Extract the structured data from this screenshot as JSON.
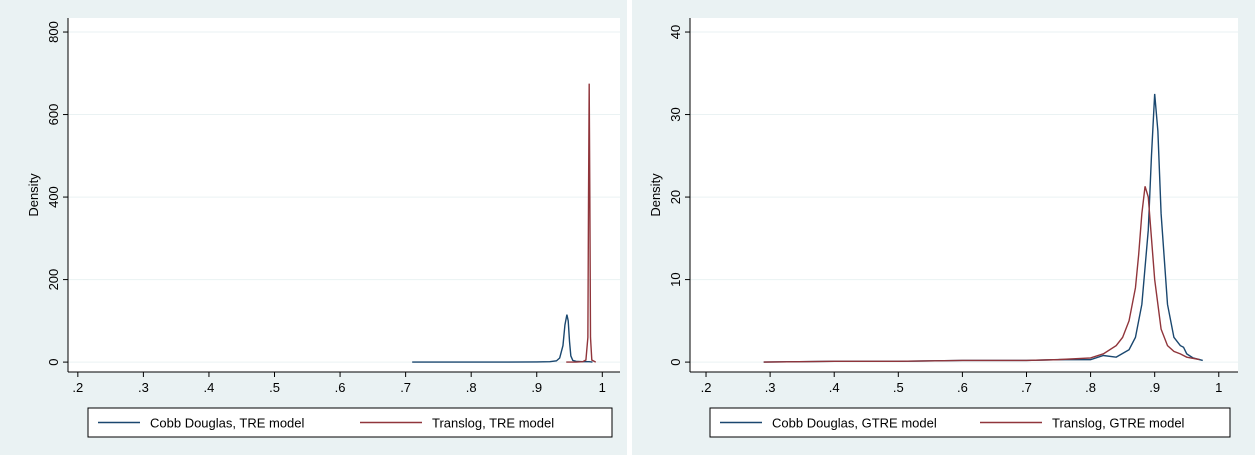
{
  "chart_data": [
    {
      "type": "line",
      "y_label": "Density",
      "xlim": [
        0.185,
        1.027
      ],
      "ylim": [
        -24,
        834
      ],
      "xticks": [
        {
          "value": 0.2,
          "label": ".2"
        },
        {
          "value": 0.3,
          "label": ".3"
        },
        {
          "value": 0.4,
          "label": ".4"
        },
        {
          "value": 0.5,
          "label": ".5"
        },
        {
          "value": 0.6,
          "label": ".6"
        },
        {
          "value": 0.7,
          "label": ".7"
        },
        {
          "value": 0.8,
          "label": ".8"
        },
        {
          "value": 0.9,
          "label": ".9"
        },
        {
          "value": 1,
          "label": "1"
        }
      ],
      "yticks": [
        0,
        200,
        400,
        600,
        800
      ],
      "grid": true,
      "series": [
        {
          "name": "Cobb Douglas, TRE model",
          "color": "#1a476f",
          "x": [
            0.71,
            0.75,
            0.8,
            0.85,
            0.9,
            0.92,
            0.93,
            0.935,
            0.94,
            0.943,
            0.946,
            0.948,
            0.95,
            0.952,
            0.955,
            0.96,
            0.97,
            0.98,
            0.985
          ],
          "values": [
            0,
            0,
            0,
            0,
            0.5,
            1,
            3,
            10,
            40,
            90,
            115,
            100,
            50,
            15,
            4,
            2,
            1,
            1,
            0
          ]
        },
        {
          "name": "Translog, TRE model",
          "color": "#90353b",
          "x": [
            0.945,
            0.96,
            0.97,
            0.975,
            0.978,
            0.979,
            0.98,
            0.981,
            0.982,
            0.984,
            0.99
          ],
          "values": [
            0,
            0,
            1,
            5,
            60,
            400,
            675,
            400,
            60,
            5,
            0
          ]
        }
      ]
    },
    {
      "type": "line",
      "y_label": "Density",
      "xlim": [
        0.175,
        1.03
      ],
      "ylim": [
        -1.2,
        41.7
      ],
      "xticks": [
        {
          "value": 0.2,
          "label": ".2"
        },
        {
          "value": 0.3,
          "label": ".3"
        },
        {
          "value": 0.4,
          "label": ".4"
        },
        {
          "value": 0.5,
          "label": ".5"
        },
        {
          "value": 0.6,
          "label": ".6"
        },
        {
          "value": 0.7,
          "label": ".7"
        },
        {
          "value": 0.8,
          "label": ".8"
        },
        {
          "value": 0.9,
          "label": ".9"
        },
        {
          "value": 1,
          "label": "1"
        }
      ],
      "yticks": [
        0,
        10,
        20,
        30,
        40
      ],
      "grid": true,
      "series": [
        {
          "name": "Cobb Douglas, GTRE model",
          "color": "#1a476f",
          "x": [
            0.29,
            0.4,
            0.5,
            0.6,
            0.7,
            0.75,
            0.8,
            0.82,
            0.84,
            0.86,
            0.87,
            0.88,
            0.89,
            0.895,
            0.9,
            0.905,
            0.91,
            0.92,
            0.93,
            0.94,
            0.945,
            0.95,
            0.96,
            0.975
          ],
          "values": [
            0,
            0.1,
            0.1,
            0.2,
            0.2,
            0.3,
            0.3,
            0.8,
            0.6,
            1.5,
            3,
            7,
            16,
            25,
            32.5,
            28,
            18,
            7,
            3,
            2,
            1.8,
            1,
            0.5,
            0.2
          ]
        },
        {
          "name": "Translog, GTRE model",
          "color": "#90353b",
          "x": [
            0.29,
            0.4,
            0.5,
            0.6,
            0.7,
            0.75,
            0.8,
            0.82,
            0.84,
            0.85,
            0.86,
            0.87,
            0.875,
            0.88,
            0.885,
            0.89,
            0.895,
            0.9,
            0.91,
            0.92,
            0.93,
            0.94,
            0.95,
            0.97
          ],
          "values": [
            0,
            0.1,
            0.1,
            0.2,
            0.2,
            0.3,
            0.5,
            1,
            2,
            3,
            5,
            9,
            13,
            18,
            21.3,
            20,
            15,
            10,
            4,
            2,
            1.3,
            1,
            0.6,
            0.3
          ]
        }
      ]
    }
  ]
}
